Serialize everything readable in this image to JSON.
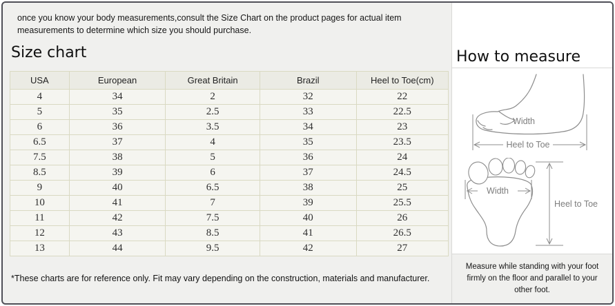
{
  "intro": {
    "text": "once you know your body measurements,consult the Size Chart on the product pages for actual item measurements to determine which size you should purchase."
  },
  "size_chart": {
    "title": "Size chart",
    "columns": [
      "USA",
      "European",
      "Great Britain",
      "Brazil",
      "Heel to Toe(cm)"
    ],
    "rows": [
      [
        "4",
        "34",
        "2",
        "32",
        "22"
      ],
      [
        "5",
        "35",
        "2.5",
        "33",
        "22.5"
      ],
      [
        "6",
        "36",
        "3.5",
        "34",
        "23"
      ],
      [
        "6.5",
        "37",
        "4",
        "35",
        "23.5"
      ],
      [
        "7.5",
        "38",
        "5",
        "36",
        "24"
      ],
      [
        "8.5",
        "39",
        "6",
        "37",
        "24.5"
      ],
      [
        "9",
        "40",
        "6.5",
        "38",
        "25"
      ],
      [
        "10",
        "41",
        "7",
        "39",
        "25.5"
      ],
      [
        "11",
        "42",
        "7.5",
        "40",
        "26"
      ],
      [
        "12",
        "43",
        "8.5",
        "41",
        "26.5"
      ],
      [
        "13",
        "44",
        "9.5",
        "42",
        "27"
      ]
    ],
    "footnote": "*These charts are for reference only. Fit may vary depending on the construction, materials and manufacturer."
  },
  "how_to_measure": {
    "title": "How to measure",
    "side_view": {
      "width_label": "Width",
      "length_label": "Heel to Toe"
    },
    "top_view": {
      "width_label": "Width",
      "length_label": "Heel to Toe"
    },
    "caption": "Measure while standing with your foot firmly on the floor and parallel to your other foot."
  },
  "colors": {
    "page_bg": "#f0f0ee",
    "panel_bg": "#ffffff",
    "frame_border": "#4e4e56",
    "table_border": "#d9d9c2",
    "table_header_bg": "#ebebe4",
    "table_row_bg": "#f5f5f0",
    "divider": "#d9d9d7",
    "diagram_stroke": "#8c8c8c",
    "label_color": "#7d7d7d",
    "text_color": "#1c1c1c"
  }
}
